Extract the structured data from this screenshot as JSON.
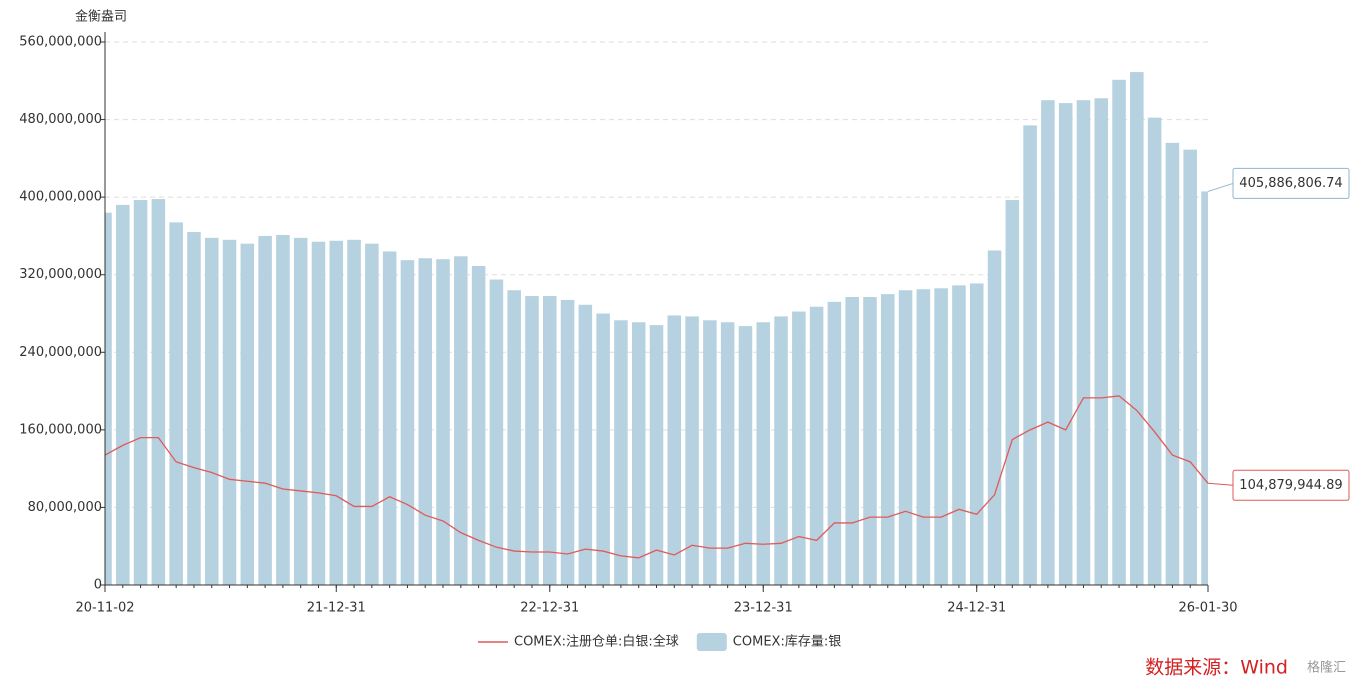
{
  "chart_data": {
    "type": "bar_line",
    "y_axis_label": "金衡盎司",
    "source": "数据来源：Wind",
    "watermark": "格隆汇",
    "categories": [
      "20-11-02",
      null,
      null,
      null,
      null,
      null,
      null,
      null,
      null,
      null,
      null,
      null,
      null,
      "21-12-31",
      null,
      null,
      null,
      null,
      null,
      null,
      null,
      null,
      null,
      null,
      null,
      "22-12-31",
      null,
      null,
      null,
      null,
      null,
      null,
      null,
      null,
      null,
      null,
      null,
      "23-12-31",
      null,
      null,
      null,
      null,
      null,
      null,
      null,
      null,
      null,
      null,
      null,
      "24-12-31",
      null,
      null,
      null,
      null,
      null,
      null,
      null,
      null,
      null,
      null,
      null,
      null,
      "26-01-30"
    ],
    "series": [
      {
        "name": "COMEX:注册仓单:白银:全球",
        "kind": "line",
        "color": "#e05a5a",
        "values": [
          134000000,
          144000000,
          152000000,
          152000000,
          127000000,
          121000000,
          116000000,
          109000000,
          107000000,
          105000000,
          99000000,
          97000000,
          95000000,
          92000000,
          81000000,
          81000000,
          91000000,
          83000000,
          72000000,
          66000000,
          54000000,
          46000000,
          39000000,
          35000000,
          34000000,
          34000000,
          32000000,
          37000000,
          35000000,
          30000000,
          28000000,
          36000000,
          31000000,
          41000000,
          38000000,
          38000000,
          43000000,
          42000000,
          43000000,
          50000000,
          46000000,
          64000000,
          64000000,
          70000000,
          70000000,
          76000000,
          70000000,
          70000000,
          78000000,
          73000000,
          93000000,
          150000000,
          160000000,
          168000000,
          160000000,
          193000000,
          193000000,
          195000000,
          180000000,
          158000000,
          134000000,
          127000000,
          104879944.89
        ],
        "value_labels": [
          null,
          null,
          null,
          null,
          null,
          null,
          null,
          null,
          null,
          null,
          null,
          null,
          null,
          null,
          null,
          null,
          null,
          null,
          null,
          null,
          null,
          null,
          null,
          null,
          null,
          null,
          null,
          null,
          null,
          null,
          null,
          null,
          null,
          null,
          null,
          null,
          null,
          null,
          null,
          null,
          null,
          null,
          null,
          null,
          null,
          null,
          null,
          null,
          null,
          null,
          null,
          null,
          null,
          null,
          null,
          null,
          null,
          null,
          null,
          null,
          null,
          null,
          "104,879,944.89"
        ]
      },
      {
        "name": "COMEX:库存量:银",
        "kind": "bar",
        "color": "#b6d1df",
        "values": [
          384000000,
          392000000,
          397000000,
          398000000,
          374000000,
          364000000,
          358000000,
          356000000,
          352000000,
          360000000,
          361000000,
          358000000,
          354000000,
          355000000,
          356000000,
          352000000,
          344000000,
          335000000,
          337000000,
          336000000,
          339000000,
          329000000,
          315000000,
          304000000,
          298000000,
          298000000,
          294000000,
          289000000,
          280000000,
          273000000,
          271000000,
          268000000,
          278000000,
          277000000,
          273000000,
          271000000,
          267000000,
          271000000,
          277000000,
          282000000,
          287000000,
          292000000,
          297000000,
          297000000,
          300000000,
          304000000,
          305000000,
          306000000,
          309000000,
          311000000,
          345000000,
          397000000,
          474000000,
          500000000,
          497000000,
          500000000,
          502000000,
          521000000,
          529000000,
          482000000,
          456000000,
          449000000,
          405886806.74
        ],
        "value_labels": [
          null,
          null,
          null,
          null,
          null,
          null,
          null,
          null,
          null,
          null,
          null,
          null,
          null,
          null,
          null,
          null,
          null,
          null,
          null,
          null,
          null,
          null,
          null,
          null,
          null,
          null,
          null,
          null,
          null,
          null,
          null,
          null,
          null,
          null,
          null,
          null,
          null,
          null,
          null,
          null,
          null,
          null,
          null,
          null,
          null,
          null,
          null,
          null,
          null,
          null,
          null,
          null,
          null,
          null,
          null,
          null,
          null,
          null,
          null,
          null,
          null,
          null,
          "405,886,806.74"
        ]
      }
    ],
    "ylim": [
      0,
      560000000
    ],
    "yticks": [
      0,
      {
        "value": 80000000,
        "label": "80,000,000"
      },
      {
        "value": 160000000,
        "label": "160,000,000"
      },
      {
        "value": 240000000,
        "label": "240,000,000"
      },
      {
        "value": 320000000,
        "label": "320,000,000"
      },
      {
        "value": 400000000,
        "label": "400,000,000"
      },
      {
        "value": 480000000,
        "label": "480,000,000"
      },
      {
        "value": 560000000,
        "label": "560,000,000"
      }
    ],
    "grid": true
  }
}
